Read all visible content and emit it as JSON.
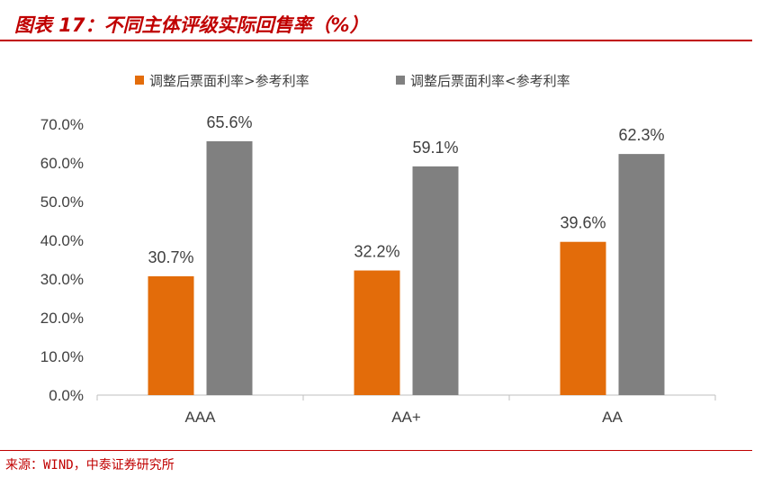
{
  "header": {
    "title": "图表 17：不同主体评级实际回售率（%）"
  },
  "footer": {
    "source": "来源：WIND，中泰证券研究所"
  },
  "chart_data": {
    "type": "bar",
    "categories": [
      "AAA",
      "AA+",
      "AA"
    ],
    "series": [
      {
        "name": "调整后票面利率>参考利率",
        "color": "#E36C0A",
        "values": [
          30.7,
          32.2,
          39.6
        ]
      },
      {
        "name": "调整后票面利率<参考利率",
        "color": "#808080",
        "values": [
          65.6,
          59.1,
          62.3
        ]
      }
    ],
    "data_labels": [
      [
        "30.7%",
        "32.2%",
        "39.6%"
      ],
      [
        "65.6%",
        "59.1%",
        "62.3%"
      ]
    ],
    "yticks": [
      "0.0%",
      "10.0%",
      "20.0%",
      "30.0%",
      "40.0%",
      "50.0%",
      "60.0%",
      "70.0%"
    ],
    "ylim": [
      0,
      70
    ],
    "grid": false,
    "legend_position": "top"
  }
}
